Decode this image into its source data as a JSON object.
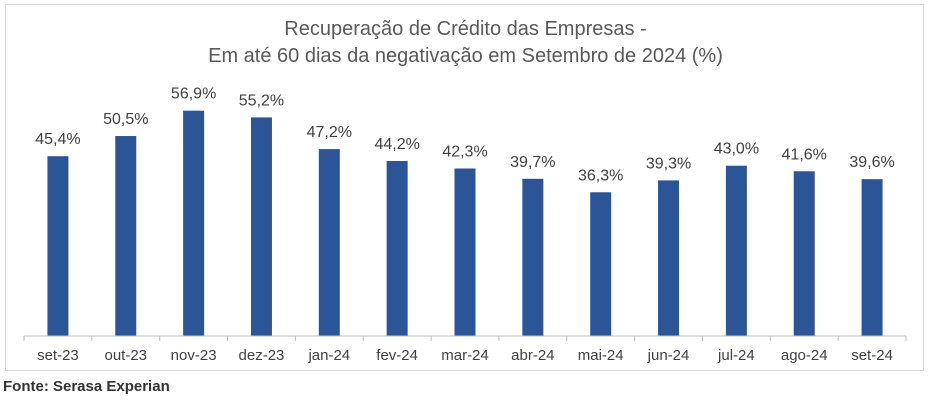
{
  "chart_data": {
    "type": "bar",
    "title_line1": "Recuperação de Crédito das Empresas -",
    "title_line2": "Em até 60 dias da negativação em Setembro de 2024 (%)",
    "categories": [
      "set-23",
      "out-23",
      "nov-23",
      "dez-23",
      "jan-24",
      "fev-24",
      "mar-24",
      "abr-24",
      "mai-24",
      "jun-24",
      "jul-24",
      "ago-24",
      "set-24"
    ],
    "values": [
      45.4,
      50.5,
      56.9,
      55.2,
      47.2,
      44.2,
      42.3,
      39.7,
      36.3,
      39.3,
      43.0,
      41.6,
      39.6
    ],
    "labels": [
      "45,4%",
      "50,5%",
      "56,9%",
      "55,2%",
      "47,2%",
      "44,2%",
      "42,3%",
      "39,7%",
      "36,3%",
      "39,3%",
      "43,0%",
      "41,6%",
      "39,6%"
    ],
    "ylim": [
      0,
      60
    ],
    "bar_color": "#2b5597",
    "grid": false,
    "legend": "none"
  },
  "source": "Fonte: Serasa Experian"
}
